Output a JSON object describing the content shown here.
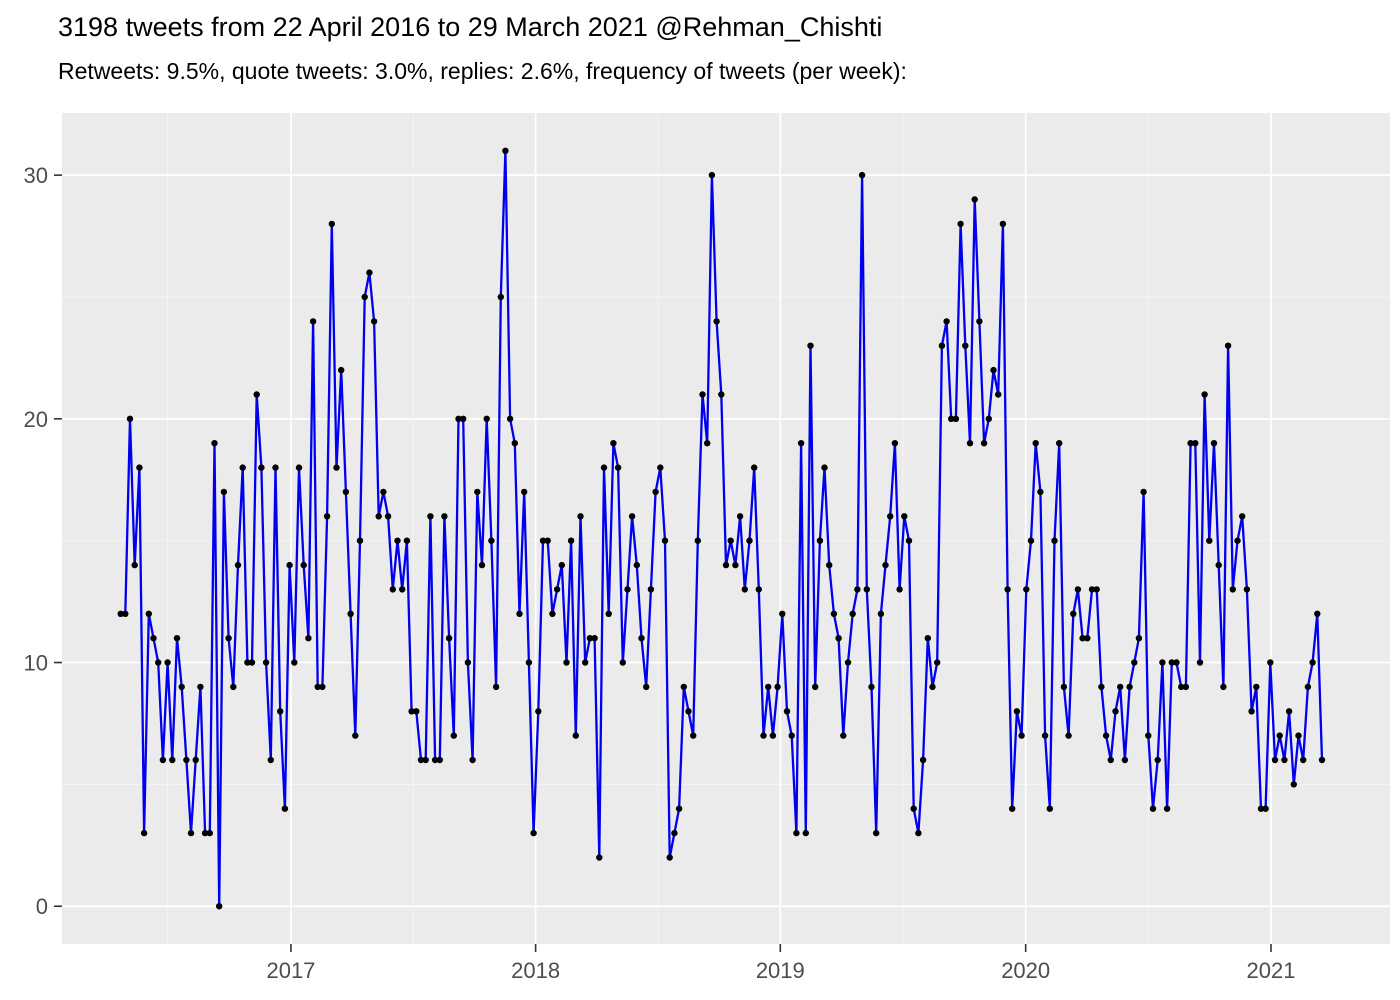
{
  "header": {
    "title": "3198 tweets from 22 April 2016 to 29 March 2021 @Rehman_Chishti",
    "subtitle": "Retweets: 9.5%, quote tweets: 3.0%, replies: 2.6%, frequency of tweets (per week):"
  },
  "chart_data": {
    "type": "line",
    "title": "3198 tweets from 22 April 2016 to 29 March 2021 @Rehman_Chishti",
    "subtitle": "Retweets: 9.5%, quote tweets: 3.0%, replies: 2.6%, frequency of tweets (per week):",
    "series_name": "tweets per week",
    "start_date": "2016-04-22",
    "end_date": "2021-03-29",
    "x_unit": "weeks since 2016-04-22",
    "values": [
      12,
      12,
      20,
      14,
      18,
      3,
      12,
      11,
      10,
      6,
      10,
      6,
      11,
      9,
      6,
      3,
      6,
      9,
      3,
      3,
      19,
      0,
      17,
      11,
      9,
      14,
      18,
      10,
      10,
      21,
      18,
      10,
      6,
      18,
      8,
      4,
      14,
      10,
      18,
      14,
      11,
      24,
      9,
      9,
      16,
      28,
      18,
      22,
      17,
      12,
      7,
      15,
      25,
      26,
      24,
      16,
      17,
      16,
      13,
      15,
      13,
      15,
      8,
      8,
      6,
      6,
      16,
      6,
      6,
      16,
      11,
      7,
      20,
      20,
      10,
      6,
      17,
      14,
      20,
      15,
      9,
      25,
      31,
      20,
      19,
      12,
      17,
      10,
      3,
      8,
      15,
      15,
      12,
      13,
      14,
      10,
      15,
      7,
      16,
      10,
      11,
      11,
      2,
      18,
      12,
      19,
      18,
      10,
      13,
      16,
      14,
      11,
      9,
      13,
      17,
      18,
      15,
      2,
      3,
      4,
      9,
      8,
      7,
      15,
      21,
      19,
      30,
      24,
      21,
      14,
      15,
      14,
      16,
      13,
      15,
      18,
      13,
      7,
      9,
      7,
      9,
      12,
      8,
      7,
      3,
      19,
      3,
      23,
      9,
      15,
      18,
      14,
      12,
      11,
      7,
      10,
      12,
      13,
      30,
      13,
      9,
      3,
      12,
      14,
      16,
      19,
      13,
      16,
      15,
      4,
      3,
      6,
      11,
      9,
      10,
      23,
      24,
      20,
      20,
      28,
      23,
      19,
      29,
      24,
      19,
      20,
      22,
      21,
      28,
      13,
      4,
      8,
      7,
      13,
      15,
      19,
      17,
      7,
      4,
      15,
      19,
      9,
      7,
      12,
      13,
      11,
      11,
      13,
      13,
      9,
      7,
      6,
      8,
      9,
      6,
      9,
      10,
      11,
      17,
      7,
      4,
      6,
      10,
      4,
      10,
      10,
      9,
      9,
      19,
      19,
      10,
      21,
      15,
      19,
      14,
      9,
      23,
      13,
      15,
      16,
      13,
      8,
      9,
      4,
      4,
      10,
      6,
      7,
      6,
      8,
      5,
      7,
      6,
      9,
      10,
      12,
      6
    ],
    "x_axis": {
      "tick_labels": [
        "2017",
        "2018",
        "2019",
        "2020",
        "2021"
      ],
      "tick_weeks": [
        36.29,
        88.43,
        140.57,
        192.86,
        245.14
      ],
      "minor_tick_weeks": [
        10.0,
        62.36,
        114.5,
        166.71,
        218.93
      ],
      "range_weeks": [
        -12.5,
        270.5
      ]
    },
    "y_axis": {
      "tick_labels": [
        "0",
        "10",
        "20",
        "30"
      ],
      "tick_values": [
        0,
        10,
        20,
        30
      ],
      "minor_tick_values": [
        5,
        15,
        25
      ],
      "range": [
        -1.55,
        32.55
      ]
    },
    "grid": true,
    "legend": "none",
    "style": {
      "line_color": "#0000EE",
      "point_color": "#000000",
      "panel_bg": "#EBEBEB",
      "grid_major_color": "#FFFFFF",
      "grid_minor_color": "#F5F5F5",
      "tick_mark_color": "#333333",
      "tick_label_color": "#4D4D4D",
      "title_color": "#000000"
    }
  }
}
